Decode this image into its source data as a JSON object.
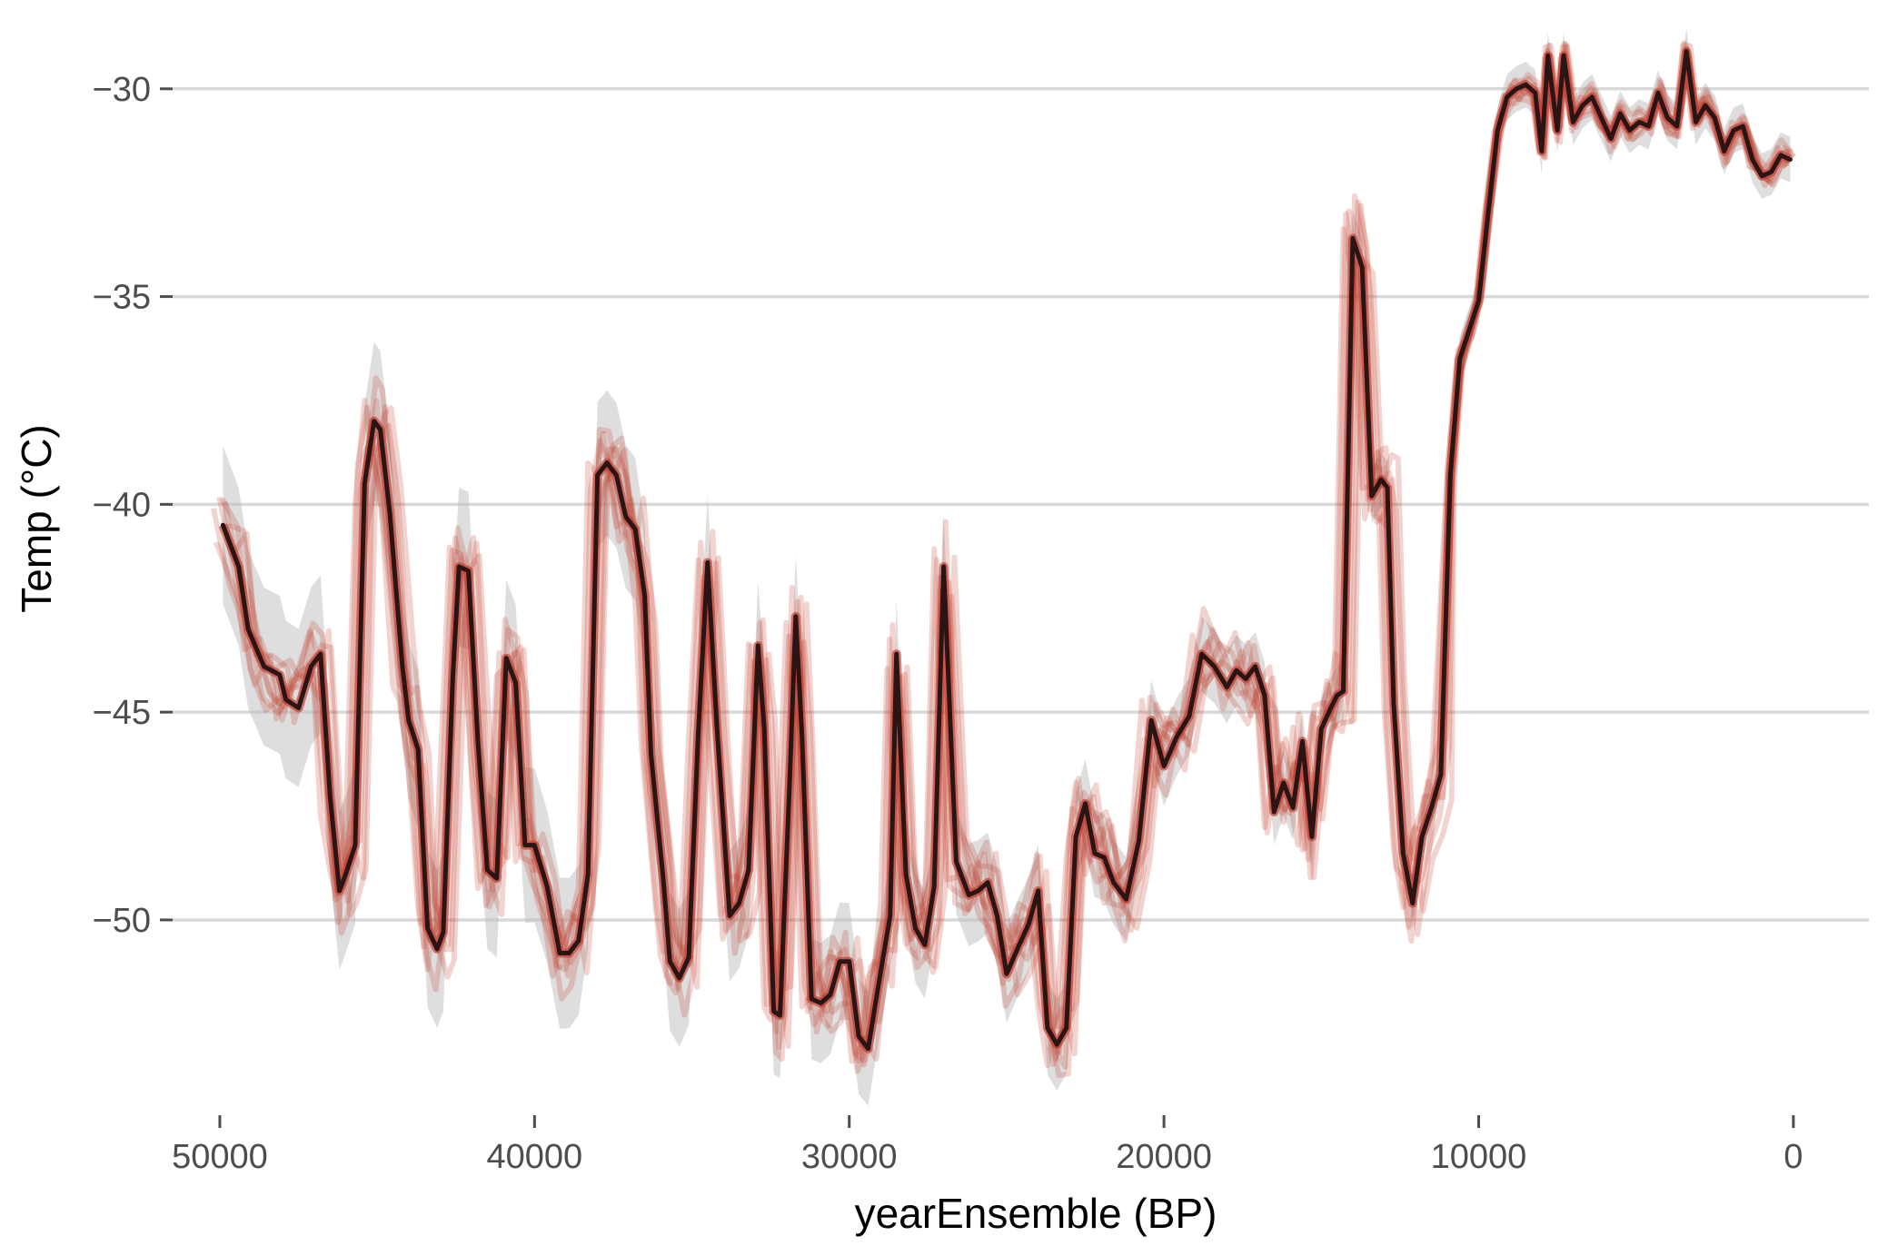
{
  "chart_data": {
    "type": "line",
    "title": "",
    "xlabel": "yearEnsemble (BP)",
    "ylabel": "Temp (°C)",
    "x_reversed": true,
    "xlim": [
      51500,
      -2400
    ],
    "ylim": [
      -54.7,
      -28.3
    ],
    "x_ticks": [
      50000,
      40000,
      30000,
      20000,
      10000,
      0
    ],
    "x_tick_labels": [
      "50000",
      "40000",
      "30000",
      "20000",
      "10000",
      "0"
    ],
    "y_ticks": [
      -30,
      -35,
      -40,
      -45,
      -50
    ],
    "y_tick_labels": [
      "−30",
      "−35",
      "−40",
      "−45",
      "−50"
    ],
    "grid": "horizontal",
    "legend": "none",
    "colors": {
      "median": "#2a1414",
      "ensemble": "#c0392b",
      "band": "#bdbdbd",
      "grid": "#d9d9d9"
    },
    "median": {
      "x": [
        49900,
        49400,
        49100,
        48600,
        48100,
        47900,
        47500,
        47100,
        46800,
        46500,
        46200,
        46000,
        45700,
        45400,
        45100,
        44900,
        44600,
        44200,
        44000,
        43700,
        43400,
        43100,
        42900,
        42600,
        42400,
        42100,
        41800,
        41500,
        41200,
        40900,
        40600,
        40300,
        40000,
        39600,
        39200,
        38900,
        38600,
        38300,
        38000,
        37700,
        37400,
        37100,
        36800,
        36500,
        36300,
        35900,
        35700,
        35400,
        35100,
        34800,
        34500,
        34200,
        33800,
        33500,
        33200,
        32900,
        32700,
        32400,
        32200,
        31900,
        31700,
        31500,
        31200,
        30900,
        30600,
        30300,
        30000,
        29700,
        29400,
        29100,
        28900,
        28700,
        28500,
        28200,
        27900,
        27600,
        27300,
        27000,
        26600,
        26200,
        25900,
        25600,
        25300,
        25000,
        24600,
        24300,
        24000,
        23700,
        23400,
        23100,
        22800,
        22500,
        22200,
        21900,
        21600,
        21200,
        20800,
        20400,
        20000,
        19600,
        19200,
        18800,
        18400,
        18000,
        17700,
        17400,
        17100,
        16800,
        16500,
        16200,
        15900,
        15600,
        15300,
        15000,
        14700,
        14500,
        14300,
        14000,
        13700,
        13400,
        13100,
        12900,
        12700,
        12400,
        12100,
        11800,
        11500,
        11200,
        10900,
        10600,
        10300,
        10000,
        9700,
        9400,
        9100,
        8800,
        8500,
        8200,
        8000,
        7800,
        7500,
        7300,
        7000,
        6700,
        6400,
        6100,
        5800,
        5500,
        5200,
        4900,
        4600,
        4300,
        4000,
        3700,
        3400,
        3100,
        2800,
        2500,
        2200,
        1900,
        1600,
        1300,
        1000,
        700,
        400,
        100
      ],
      "y": [
        -40.5,
        -41.5,
        -43.0,
        -43.9,
        -44.1,
        -44.7,
        -44.9,
        -43.9,
        -43.6,
        -47.0,
        -49.3,
        -48.9,
        -48.2,
        -39.5,
        -38.0,
        -38.2,
        -40.2,
        -43.9,
        -45.2,
        -45.9,
        -50.2,
        -50.7,
        -50.3,
        -44.2,
        -41.5,
        -41.6,
        -45.7,
        -48.8,
        -49.0,
        -43.7,
        -44.3,
        -48.2,
        -48.2,
        -49.2,
        -50.8,
        -50.8,
        -50.5,
        -48.9,
        -39.3,
        -39.0,
        -39.3,
        -40.3,
        -40.6,
        -42.2,
        -46.0,
        -49.1,
        -51.0,
        -51.4,
        -50.9,
        -45.5,
        -41.4,
        -45.4,
        -49.9,
        -49.6,
        -48.8,
        -43.4,
        -45.4,
        -52.2,
        -52.3,
        -46.8,
        -42.7,
        -45.6,
        -51.9,
        -52.0,
        -51.8,
        -51.0,
        -51.0,
        -52.8,
        -53.1,
        -51.7,
        -50.8,
        -49.9,
        -43.6,
        -48.9,
        -50.2,
        -50.6,
        -49.2,
        -41.5,
        -48.6,
        -49.4,
        -49.3,
        -49.1,
        -49.9,
        -51.3,
        -50.6,
        -50.1,
        -49.3,
        -52.6,
        -53.0,
        -52.6,
        -48.0,
        -47.2,
        -48.4,
        -48.5,
        -49.1,
        -49.5,
        -48.1,
        -45.2,
        -46.3,
        -45.6,
        -45.1,
        -43.6,
        -43.9,
        -44.4,
        -44.0,
        -44.2,
        -43.9,
        -44.6,
        -47.4,
        -46.7,
        -47.3,
        -45.7,
        -48.0,
        -45.4,
        -44.9,
        -44.6,
        -44.5,
        -33.6,
        -34.3,
        -39.8,
        -39.4,
        -39.6,
        -44.8,
        -48.4,
        -49.6,
        -48.0,
        -47.3,
        -46.5,
        -39.3,
        -36.5,
        -35.8,
        -35.1,
        -33.0,
        -31.0,
        -30.2,
        -30.0,
        -29.9,
        -30.1,
        -31.5,
        -29.2,
        -31.0,
        -29.2,
        -30.8,
        -30.4,
        -30.2,
        -30.7,
        -31.2,
        -30.6,
        -31.0,
        -30.8,
        -30.9,
        -30.1,
        -30.7,
        -30.9,
        -29.1,
        -30.8,
        -30.4,
        -30.7,
        -31.5,
        -31.0,
        -30.9,
        -31.7,
        -32.1,
        -32.0,
        -31.6,
        -31.7
      ]
    }
  }
}
